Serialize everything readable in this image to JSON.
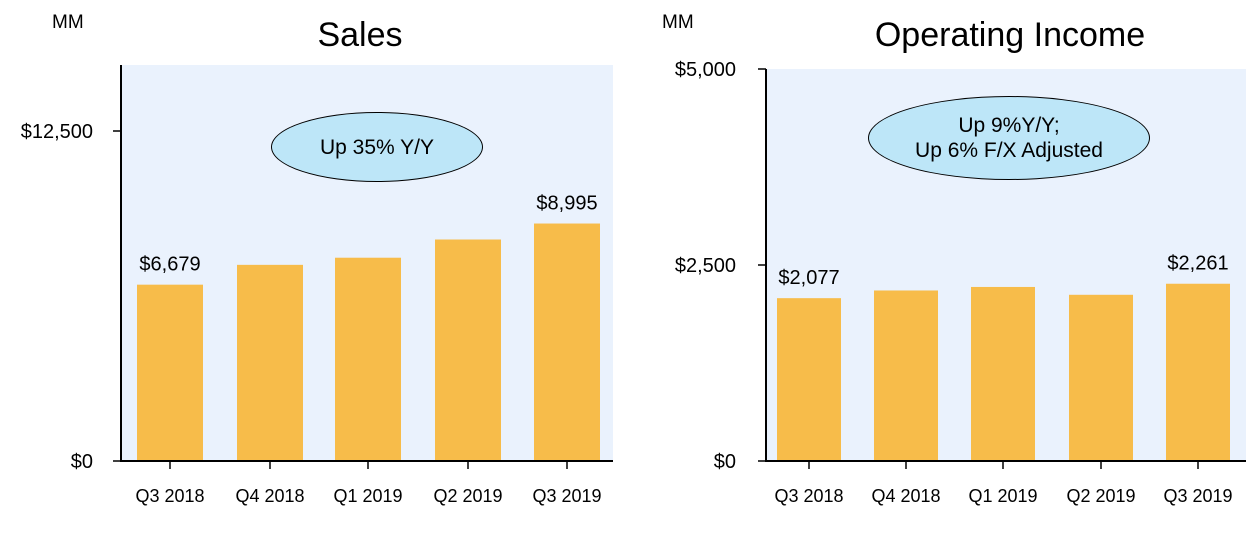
{
  "charts": [
    {
      "id": "sales",
      "unit": "MM",
      "title": "Sales",
      "callout": [
        "Up 35% Y/Y"
      ],
      "colors": {
        "bar": "#f7bc4a",
        "plot_bg": "#eaf2fd",
        "callout_bg": "#bde6f8"
      }
    },
    {
      "id": "opinc",
      "unit": "MM",
      "title": "Operating Income",
      "callout": [
        "Up 9%Y/Y;",
        "Up 6% F/X Adjusted"
      ],
      "colors": {
        "bar": "#f7bc4a",
        "plot_bg": "#eaf2fd",
        "callout_bg": "#bde6f8"
      }
    }
  ],
  "chart_data": [
    {
      "type": "bar",
      "title": "Sales",
      "ylabel": "MM",
      "categories": [
        "Q3 2018",
        "Q4 2018",
        "Q1 2019",
        "Q2 2019",
        "Q3 2019"
      ],
      "values": [
        6679,
        7430,
        7700,
        8390,
        8995
      ],
      "data_labels": [
        "$6,679",
        "",
        "",
        "",
        "$8,995"
      ],
      "yticks": [
        0,
        12500
      ],
      "ytick_labels": [
        "$0",
        "$12,500"
      ],
      "ylim": [
        0,
        15000
      ],
      "grid": false,
      "legend": "none"
    },
    {
      "type": "bar",
      "title": "Operating Income",
      "ylabel": "MM",
      "categories": [
        "Q3 2018",
        "Q4 2018",
        "Q1 2019",
        "Q2 2019",
        "Q3 2019"
      ],
      "values": [
        2077,
        2175,
        2220,
        2120,
        2261
      ],
      "data_labels": [
        "$2,077",
        "",
        "",
        "",
        "$2,261"
      ],
      "yticks": [
        0,
        2500,
        5000
      ],
      "ytick_labels": [
        "$0",
        "$2,500",
        "$5,000"
      ],
      "ylim": [
        0,
        5000
      ],
      "grid": false,
      "legend": "none"
    }
  ]
}
